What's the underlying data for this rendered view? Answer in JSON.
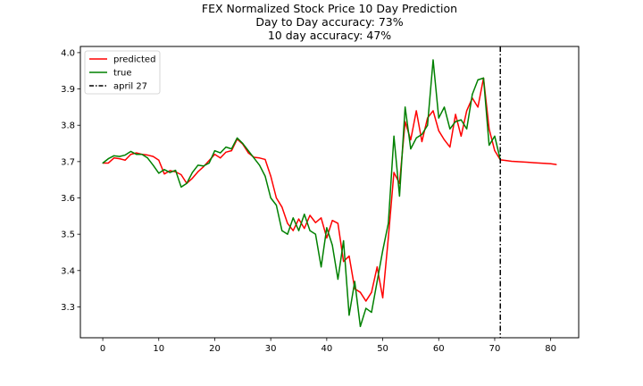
{
  "chart_data": {
    "type": "line",
    "title_lines": [
      "FEX Normalized Stock Price 10 Day Prediction",
      "Day to Day accuracy: 73%",
      "10 day accuracy: 47%"
    ],
    "xlabel": "",
    "ylabel": "",
    "xlim": [
      -4,
      85
    ],
    "ylim": [
      3.215,
      4.017
    ],
    "xticks": [
      0,
      10,
      20,
      30,
      40,
      50,
      60,
      70,
      80
    ],
    "yticks": [
      3.3,
      3.4,
      3.5,
      3.6,
      3.7,
      3.8,
      3.9,
      4.0
    ],
    "ytick_labels": [
      "3.3",
      "3.4",
      "3.5",
      "3.6",
      "3.7",
      "3.8",
      "3.9",
      "4.0"
    ],
    "legend_position": "upper left",
    "grid": false,
    "series": [
      {
        "name": "predicted",
        "color": "#ff0000",
        "x": [
          0,
          1,
          2,
          3,
          4,
          5,
          6,
          7,
          8,
          9,
          10,
          11,
          12,
          13,
          14,
          15,
          16,
          17,
          18,
          19,
          20,
          21,
          22,
          23,
          24,
          25,
          26,
          27,
          28,
          29,
          30,
          31,
          32,
          33,
          34,
          35,
          36,
          37,
          38,
          39,
          40,
          41,
          42,
          43,
          44,
          45,
          46,
          47,
          48,
          49,
          50,
          51,
          52,
          53,
          54,
          55,
          56,
          57,
          58,
          59,
          60,
          61,
          62,
          63,
          64,
          65,
          66,
          67,
          68,
          69,
          70,
          71,
          72,
          73,
          74,
          75,
          76,
          77,
          78,
          79,
          80,
          81
        ],
        "values": [
          3.696,
          3.696,
          3.71,
          3.708,
          3.704,
          3.72,
          3.724,
          3.72,
          3.718,
          3.714,
          3.704,
          3.666,
          3.675,
          3.672,
          3.664,
          3.64,
          3.654,
          3.672,
          3.686,
          3.703,
          3.72,
          3.71,
          3.726,
          3.73,
          3.762,
          3.748,
          3.724,
          3.712,
          3.71,
          3.706,
          3.66,
          3.6,
          3.575,
          3.53,
          3.51,
          3.542,
          3.516,
          3.552,
          3.532,
          3.545,
          3.49,
          3.538,
          3.53,
          3.425,
          3.44,
          3.35,
          3.34,
          3.316,
          3.34,
          3.41,
          3.325,
          3.49,
          3.67,
          3.64,
          3.81,
          3.76,
          3.84,
          3.755,
          3.82,
          3.84,
          3.785,
          3.76,
          3.74,
          3.83,
          3.77,
          3.84,
          3.875,
          3.85,
          3.93,
          3.79,
          3.73,
          3.705,
          3.703,
          3.701,
          3.7,
          3.699,
          3.698,
          3.697,
          3.696,
          3.695,
          3.694,
          3.692
        ]
      },
      {
        "name": "true",
        "color": "#008000",
        "x": [
          0,
          1,
          2,
          3,
          4,
          5,
          6,
          7,
          8,
          9,
          10,
          11,
          12,
          13,
          14,
          15,
          16,
          17,
          18,
          19,
          20,
          21,
          22,
          23,
          24,
          25,
          26,
          27,
          28,
          29,
          30,
          31,
          32,
          33,
          34,
          35,
          36,
          37,
          38,
          39,
          40,
          41,
          42,
          43,
          44,
          45,
          46,
          47,
          48,
          49,
          50,
          51,
          52,
          53,
          54,
          55,
          56,
          57,
          58,
          59,
          60,
          61,
          62,
          63,
          64,
          65,
          66,
          67,
          68,
          69,
          70,
          71
        ],
        "values": [
          3.696,
          3.708,
          3.716,
          3.714,
          3.718,
          3.728,
          3.72,
          3.72,
          3.71,
          3.69,
          3.668,
          3.678,
          3.67,
          3.676,
          3.63,
          3.64,
          3.67,
          3.69,
          3.688,
          3.696,
          3.73,
          3.724,
          3.74,
          3.735,
          3.765,
          3.75,
          3.73,
          3.71,
          3.69,
          3.66,
          3.6,
          3.58,
          3.51,
          3.5,
          3.545,
          3.51,
          3.555,
          3.51,
          3.5,
          3.41,
          3.518,
          3.47,
          3.376,
          3.482,
          3.277,
          3.37,
          3.246,
          3.296,
          3.285,
          3.37,
          3.455,
          3.53,
          3.77,
          3.605,
          3.85,
          3.735,
          3.765,
          3.775,
          3.8,
          3.98,
          3.82,
          3.85,
          3.79,
          3.81,
          3.815,
          3.79,
          3.885,
          3.925,
          3.93,
          3.745,
          3.77,
          3.705
        ]
      }
    ],
    "vline": {
      "name": "april 27",
      "x": 71,
      "color": "#000000",
      "style": "dashdot"
    }
  }
}
